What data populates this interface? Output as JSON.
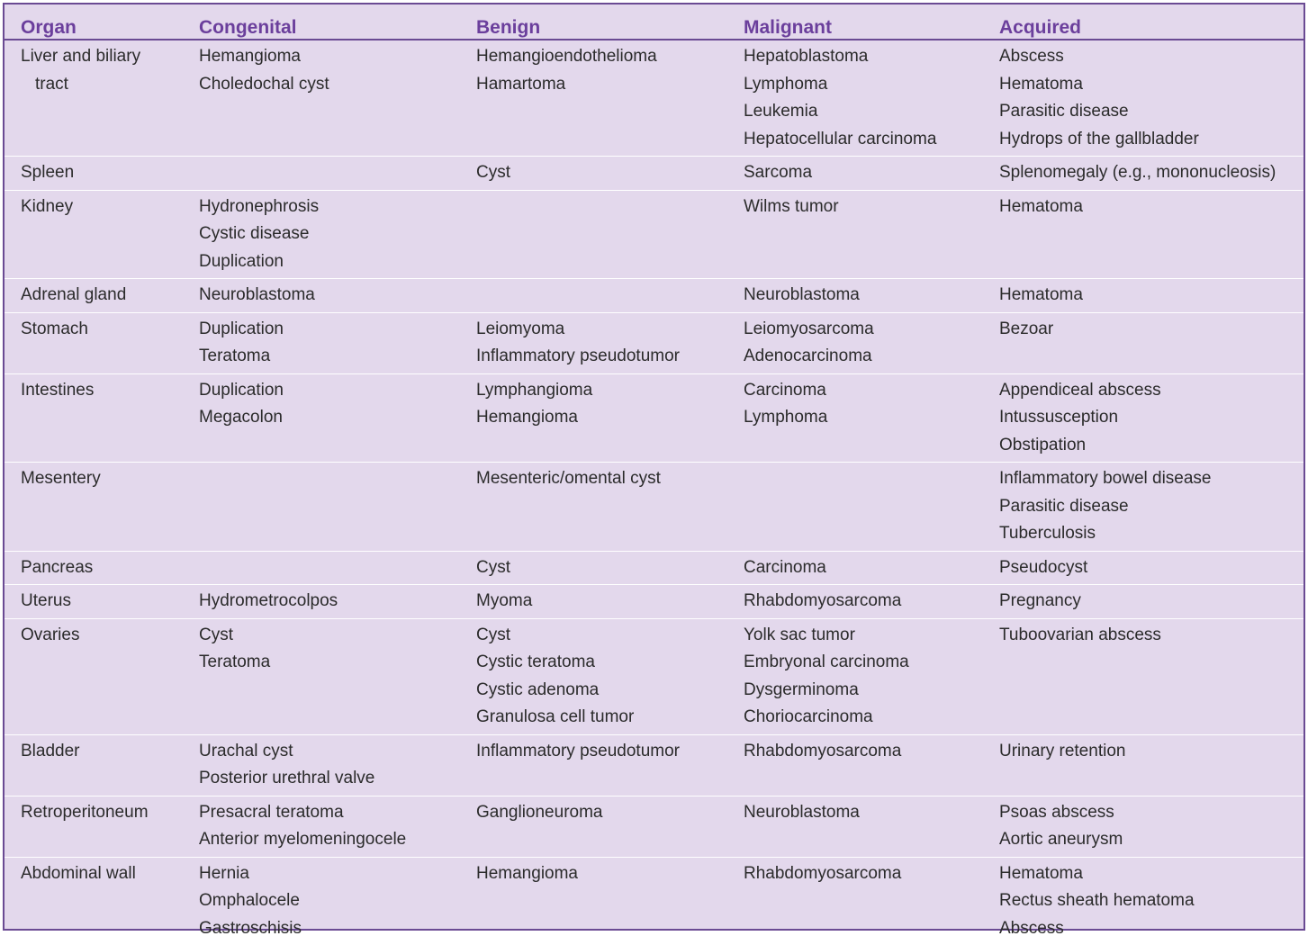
{
  "headers": [
    "Organ",
    "Congenital",
    "Benign",
    "Malignant",
    "Acquired"
  ],
  "rows": [
    {
      "organ": [
        "Liver and biliary",
        "tract"
      ],
      "congenital": [
        "Hemangioma",
        "Choledochal cyst"
      ],
      "benign": [
        "Hemangioendothelioma",
        "Hamartoma"
      ],
      "malignant": [
        "Hepatoblastoma",
        "Lymphoma",
        "Leukemia",
        "Hepatocellular carcinoma"
      ],
      "acquired": [
        "Abscess",
        "Hematoma",
        "Parasitic disease",
        "Hydrops of the gallbladder"
      ]
    },
    {
      "organ": [
        "Spleen"
      ],
      "congenital": [],
      "benign": [
        "Cyst"
      ],
      "malignant": [
        "Sarcoma"
      ],
      "acquired": [
        "Splenomegaly (e.g., mononucleosis)"
      ]
    },
    {
      "organ": [
        "Kidney"
      ],
      "congenital": [
        "Hydronephrosis",
        "Cystic disease",
        "Duplication"
      ],
      "benign": [],
      "malignant": [
        "Wilms tumor"
      ],
      "acquired": [
        "Hematoma"
      ]
    },
    {
      "organ": [
        "Adrenal gland"
      ],
      "congenital": [
        "Neuroblastoma"
      ],
      "benign": [],
      "malignant": [
        "Neuroblastoma"
      ],
      "acquired": [
        "Hematoma"
      ]
    },
    {
      "organ": [
        "Stomach"
      ],
      "congenital": [
        "Duplication",
        "Teratoma"
      ],
      "benign": [
        "Leiomyoma",
        "Inflammatory pseudotumor"
      ],
      "malignant": [
        "Leiomyosarcoma",
        "Adenocarcinoma"
      ],
      "acquired": [
        "Bezoar"
      ]
    },
    {
      "organ": [
        "Intestines"
      ],
      "congenital": [
        "Duplication",
        "Megacolon"
      ],
      "benign": [
        "Lymphangioma",
        "Hemangioma"
      ],
      "malignant": [
        "Carcinoma",
        "Lymphoma"
      ],
      "acquired": [
        "Appendiceal abscess",
        "Intussusception",
        "Obstipation"
      ]
    },
    {
      "organ": [
        "Mesentery"
      ],
      "congenital": [],
      "benign": [
        "Mesenteric/omental cyst"
      ],
      "malignant": [],
      "acquired": [
        "Inflammatory bowel disease",
        "Parasitic disease",
        "Tuberculosis"
      ]
    },
    {
      "organ": [
        "Pancreas"
      ],
      "congenital": [],
      "benign": [
        "Cyst"
      ],
      "malignant": [
        "Carcinoma"
      ],
      "acquired": [
        "Pseudocyst"
      ]
    },
    {
      "organ": [
        "Uterus"
      ],
      "congenital": [
        "Hydrometrocolpos"
      ],
      "benign": [
        "Myoma"
      ],
      "malignant": [
        "Rhabdomyosarcoma"
      ],
      "acquired": [
        "Pregnancy"
      ]
    },
    {
      "organ": [
        "Ovaries"
      ],
      "congenital": [
        "Cyst",
        "Teratoma"
      ],
      "benign": [
        "Cyst",
        "Cystic teratoma",
        "Cystic adenoma",
        "Granulosa cell tumor"
      ],
      "malignant": [
        "Yolk sac tumor",
        "Embryonal carcinoma",
        "Dysgerminoma",
        "Choriocarcinoma"
      ],
      "acquired": [
        "Tuboovarian abscess"
      ]
    },
    {
      "organ": [
        "Bladder"
      ],
      "congenital": [
        "Urachal cyst",
        "Posterior urethral valve"
      ],
      "benign": [
        "Inflammatory pseudotumor"
      ],
      "malignant": [
        "Rhabdomyosarcoma"
      ],
      "acquired": [
        "Urinary retention"
      ]
    },
    {
      "organ": [
        "Retroperitoneum"
      ],
      "congenital": [
        "Presacral teratoma",
        "Anterior myelomeningocele"
      ],
      "benign": [
        "Ganglioneuroma"
      ],
      "malignant": [
        "Neuroblastoma"
      ],
      "acquired": [
        "Psoas abscess",
        "Aortic aneurysm"
      ]
    },
    {
      "organ": [
        "Abdominal wall"
      ],
      "congenital": [
        "Hernia",
        "Omphalocele",
        "Gastroschisis"
      ],
      "benign": [
        "Hemangioma"
      ],
      "malignant": [
        "Rhabdomyosarcoma"
      ],
      "acquired": [
        "Hematoma",
        "Rectus sheath hematoma",
        "Abscess"
      ]
    }
  ],
  "colors": {
    "header_text": "#6b3f9c",
    "border": "#6a4a93",
    "background": "#e3d8ec",
    "row_divider": "#ffffff",
    "body_text": "#2b2b2b"
  }
}
